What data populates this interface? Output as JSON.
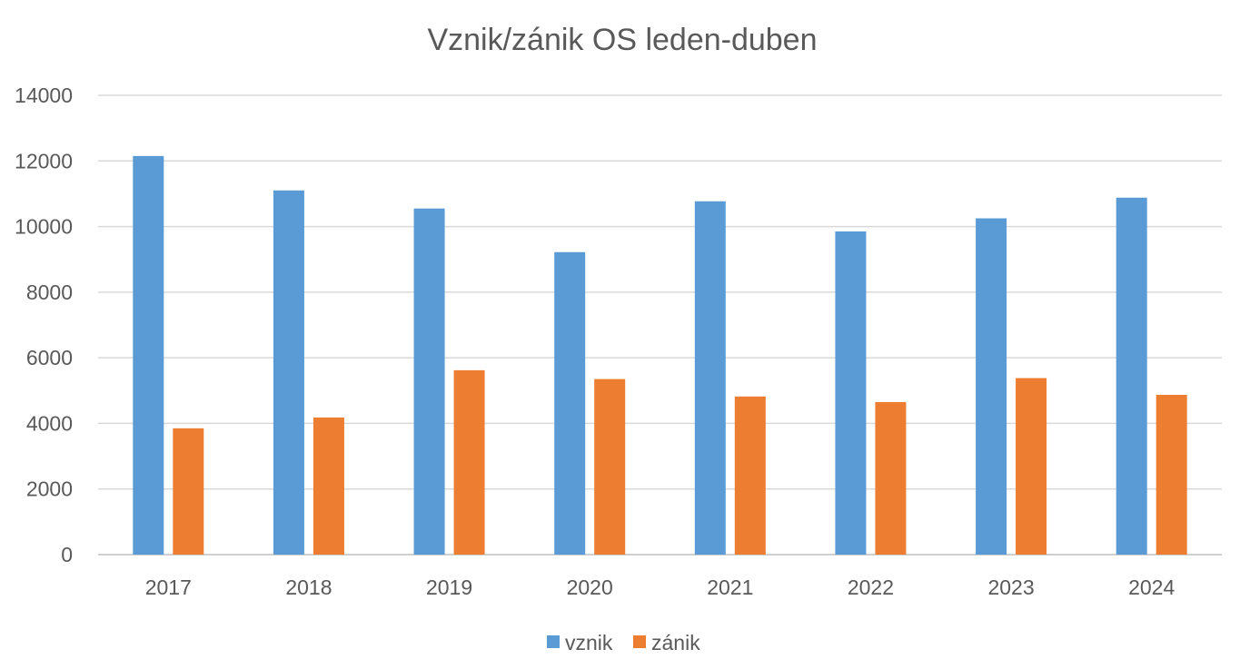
{
  "chart_data": {
    "type": "bar",
    "title": "Vznik/zánik OS leden-duben",
    "xlabel": "",
    "ylabel": "",
    "categories": [
      "2017",
      "2018",
      "2019",
      "2020",
      "2021",
      "2022",
      "2023",
      "2024"
    ],
    "series": [
      {
        "name": "vznik",
        "color": "#5b9bd5",
        "values": [
          12150,
          11100,
          10550,
          9220,
          10770,
          9850,
          10250,
          10880
        ]
      },
      {
        "name": "zánik",
        "color": "#ed7d31",
        "values": [
          3850,
          4180,
          5620,
          5350,
          4820,
          4650,
          5380,
          4870
        ]
      }
    ],
    "ylim": [
      0,
      14000
    ],
    "yticks": [
      "0",
      "2000",
      "4000",
      "6000",
      "8000",
      "10000",
      "12000",
      "14000"
    ],
    "grid": true,
    "legend_position": "bottom"
  }
}
